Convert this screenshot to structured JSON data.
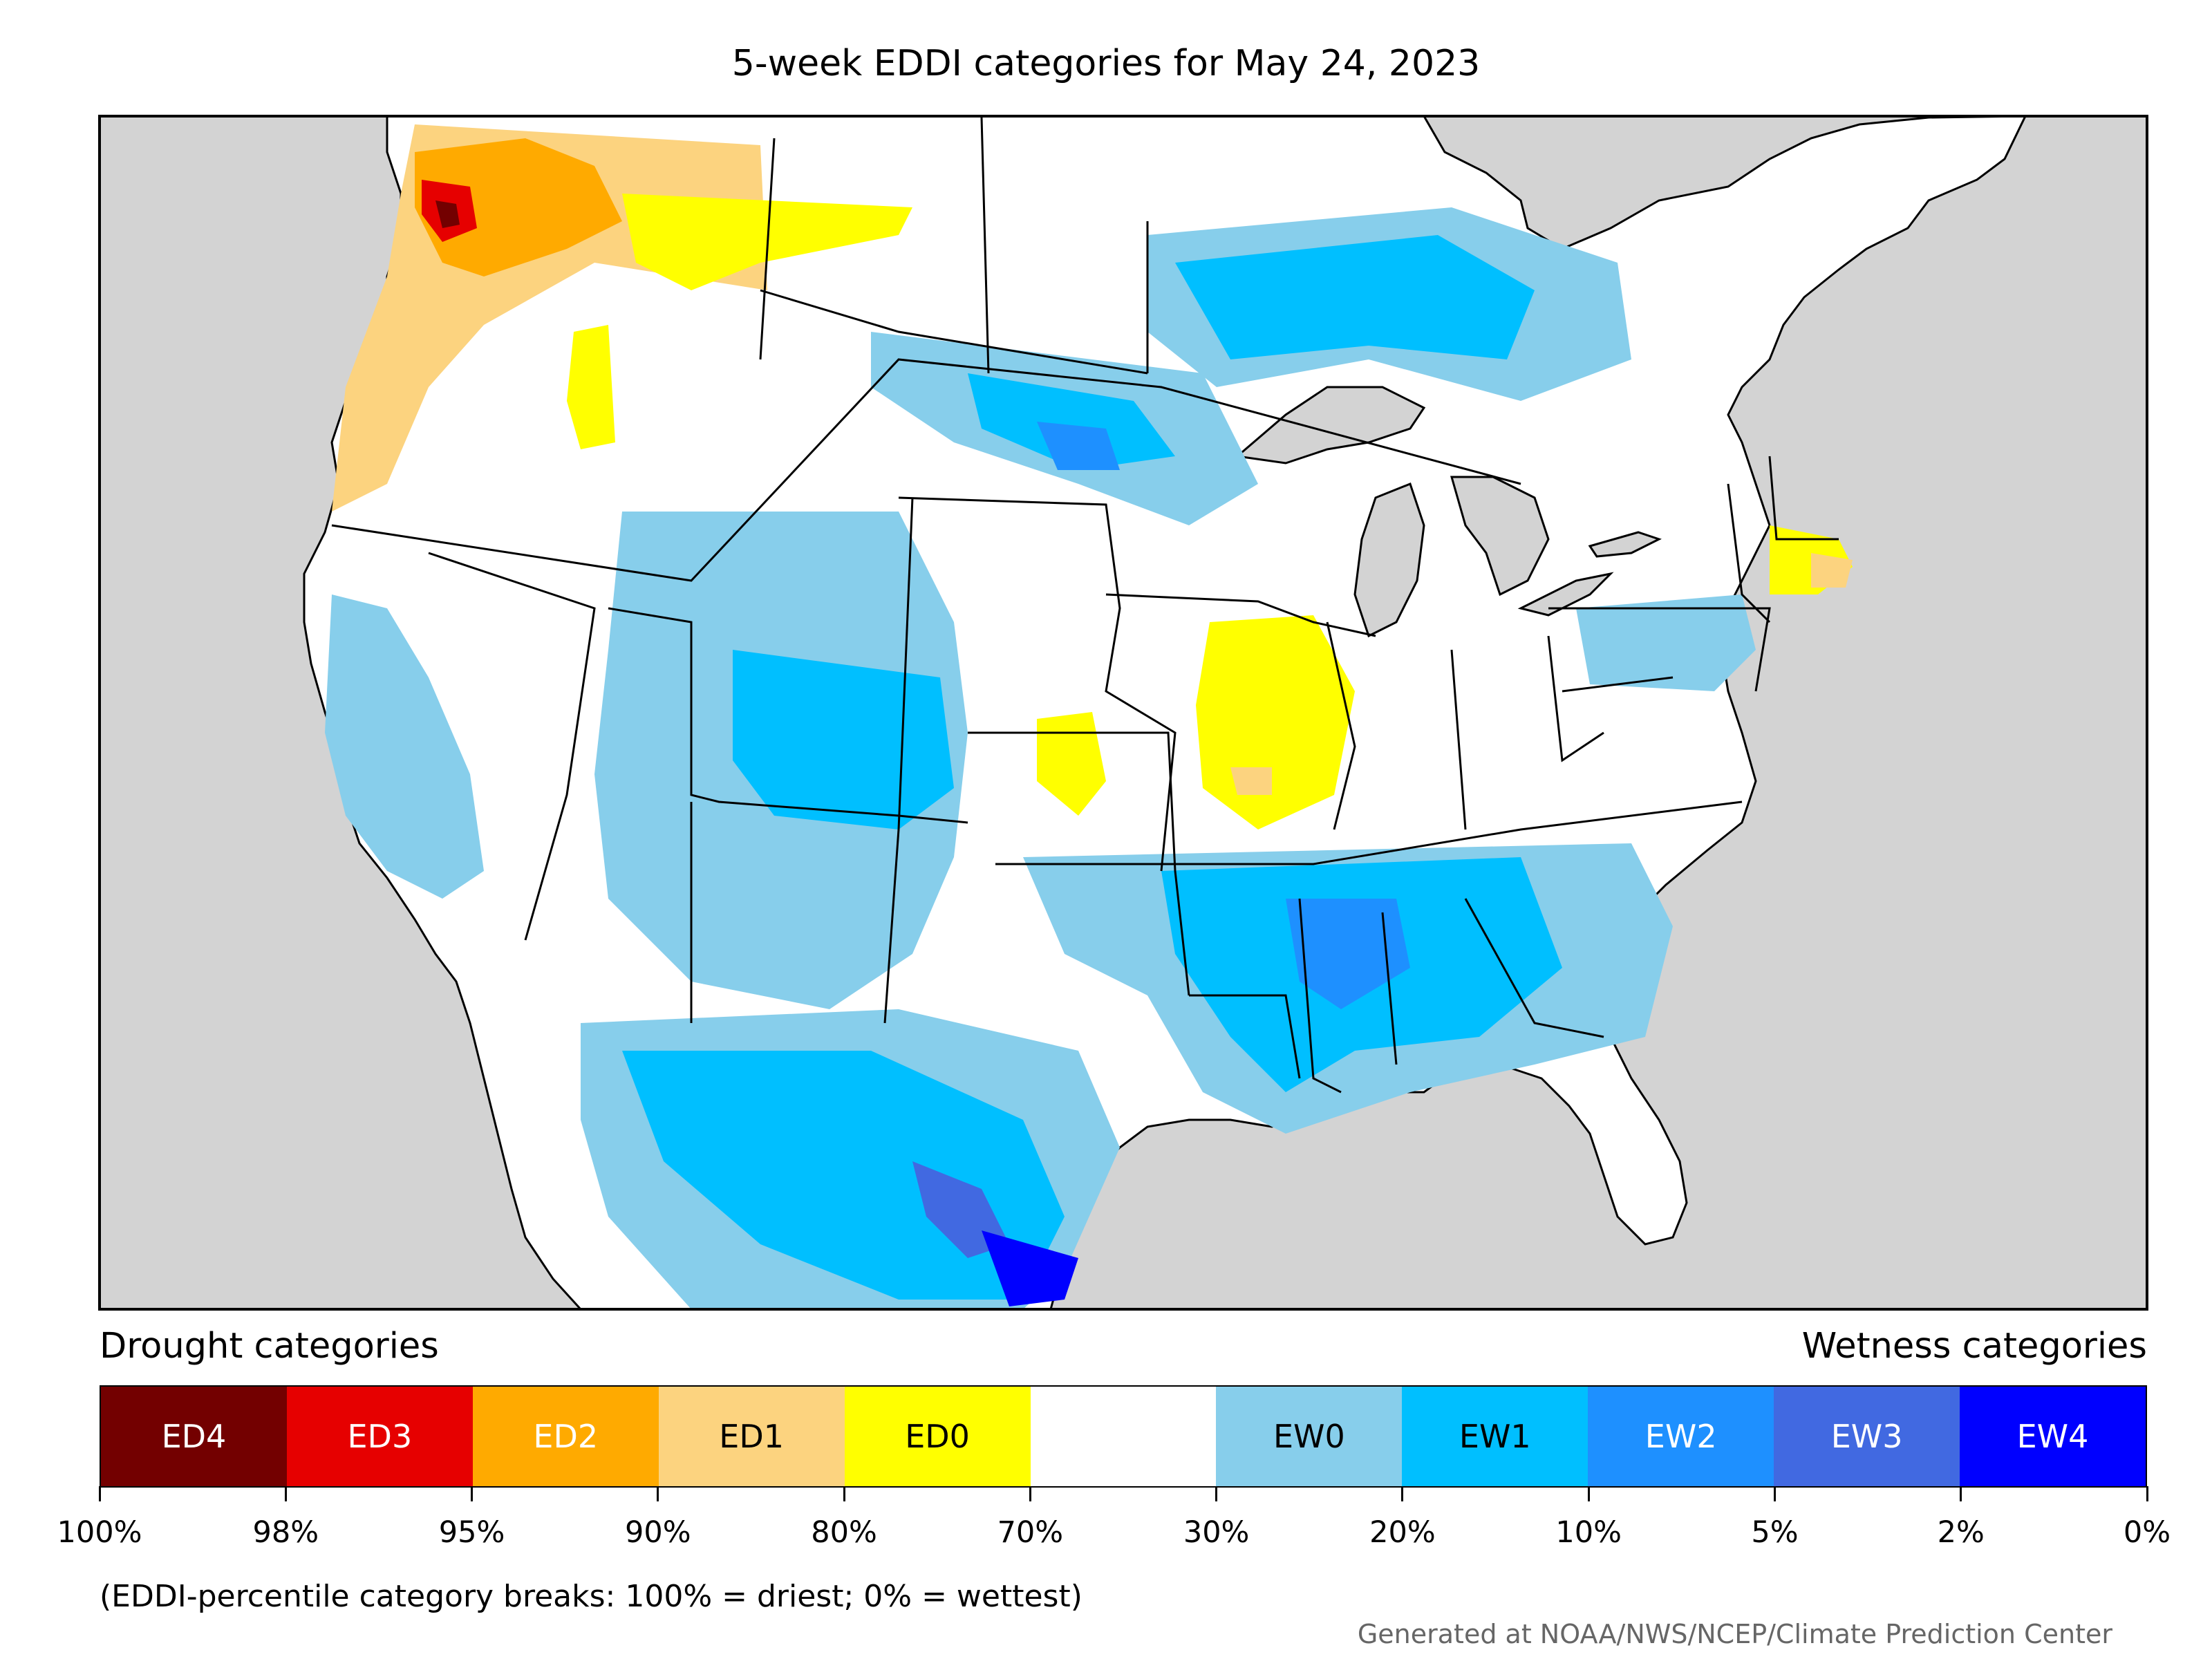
{
  "title": "5-week EDDI categories for May 24, 2023",
  "legend": {
    "drought_heading": "Drought categories",
    "wetness_heading": "Wetness categories",
    "categories": [
      {
        "label": "ED4",
        "color": "#730000",
        "text_color": "#ffffff"
      },
      {
        "label": "ED3",
        "color": "#e60000",
        "text_color": "#ffffff"
      },
      {
        "label": "ED2",
        "color": "#ffaa00",
        "text_color": "#ffffff"
      },
      {
        "label": "ED1",
        "color": "#fcd37f",
        "text_color": "#000000"
      },
      {
        "label": "ED0",
        "color": "#ffff00",
        "text_color": "#000000"
      },
      {
        "label": "",
        "color": "#ffffff",
        "text_color": "#000000"
      },
      {
        "label": "EW0",
        "color": "#87ceeb",
        "text_color": "#000000"
      },
      {
        "label": "EW1",
        "color": "#00bfff",
        "text_color": "#000000"
      },
      {
        "label": "EW2",
        "color": "#1e90ff",
        "text_color": "#ffffff"
      },
      {
        "label": "EW3",
        "color": "#4169e1",
        "text_color": "#ffffff"
      },
      {
        "label": "EW4",
        "color": "#0000ff",
        "text_color": "#ffffff"
      }
    ],
    "breaks": [
      "100%",
      "98%",
      "95%",
      "90%",
      "80%",
      "70%",
      "30%",
      "20%",
      "10%",
      "5%",
      "2%",
      "0%"
    ],
    "note": "(EDDI-percentile category breaks: 100% = driest; 0% = wettest)"
  },
  "credit": "Generated at NOAA/NWS/NCEP/Climate Prediction Center",
  "map_colors": {
    "background": "#d3d3d3",
    "land": "#ffffff",
    "borders": "#000000"
  }
}
